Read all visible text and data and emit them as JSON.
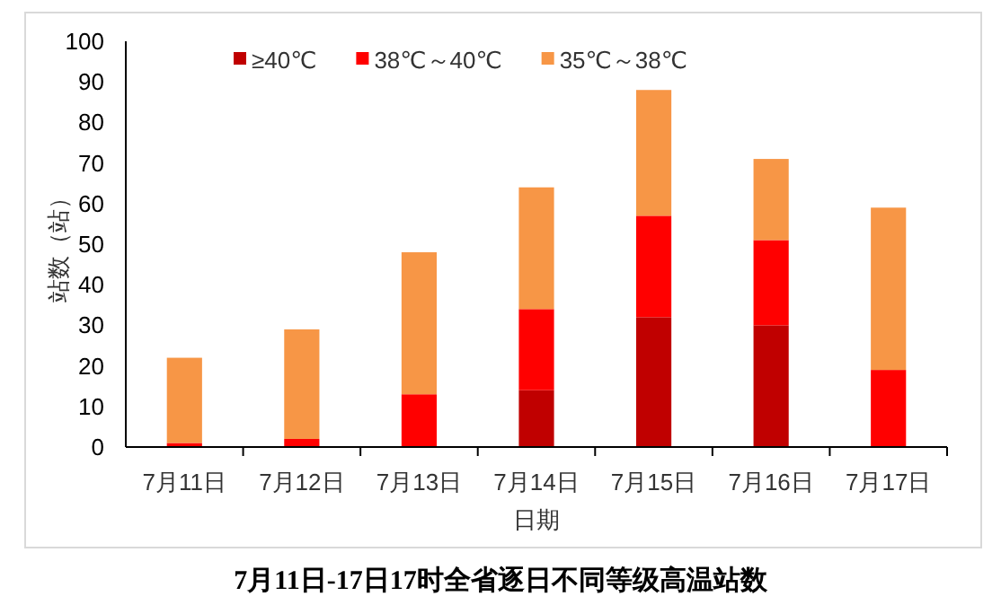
{
  "chart_data": {
    "type": "bar",
    "stacked": true,
    "title": "7月11日-17日17时全省逐日不同等级高温站数",
    "xlabel": "日期",
    "ylabel": "站数（站）",
    "categories": [
      "7月11日",
      "7月12日",
      "7月13日",
      "7月14日",
      "7月15日",
      "7月16日",
      "7月17日"
    ],
    "series": [
      {
        "name": "≥40℃",
        "color": "#c00000",
        "values": [
          0,
          0,
          0,
          14,
          32,
          30,
          0
        ]
      },
      {
        "name": "38℃～40℃",
        "color": "#ff0000",
        "values": [
          1,
          2,
          13,
          20,
          25,
          21,
          19
        ]
      },
      {
        "name": "35℃～38℃",
        "color": "#f79646",
        "values": [
          21,
          27,
          35,
          30,
          31,
          20,
          40
        ]
      }
    ],
    "ylim": [
      0,
      100
    ],
    "yticks": [
      0,
      10,
      20,
      30,
      40,
      50,
      60,
      70,
      80,
      90,
      100
    ],
    "grid": false,
    "legend": "top"
  }
}
